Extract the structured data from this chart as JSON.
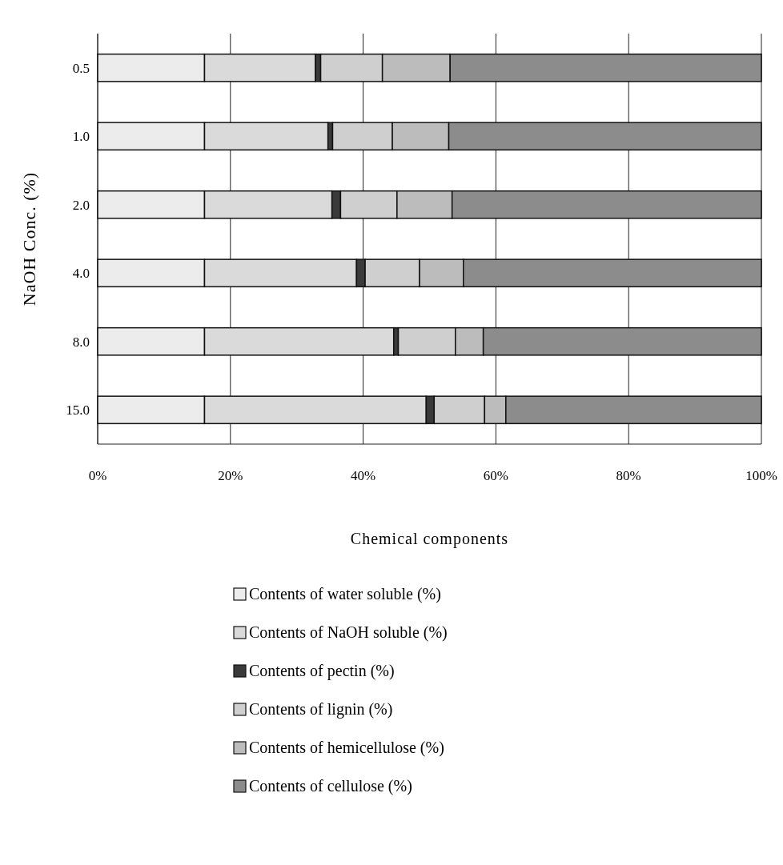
{
  "chart_data": {
    "type": "bar",
    "orientation": "horizontal",
    "stacked": true,
    "xlabel": "Chemical components",
    "ylabel": "NaOH Conc. (%)",
    "categories": [
      "0.5",
      "1.0",
      "2.0",
      "4.0",
      "8.0",
      "15.0"
    ],
    "series": [
      {
        "name": "Contents of water soluble (%)",
        "color": "#ececec",
        "values": [
          16.1,
          16.1,
          16.1,
          16.1,
          16.1,
          16.1
        ]
      },
      {
        "name": "Contents of NaOH soluble (%)",
        "color": "#dadada",
        "values": [
          16.7,
          18.6,
          19.2,
          22.9,
          28.5,
          33.4
        ]
      },
      {
        "name": "Contents of pectin (%)",
        "color": "#3a3a3a",
        "values": [
          0.8,
          0.7,
          1.3,
          1.3,
          0.7,
          1.2
        ]
      },
      {
        "name": "Contents of lignin (%)",
        "color": "#cfcfcf",
        "values": [
          9.3,
          9.0,
          8.5,
          8.2,
          8.6,
          7.6
        ]
      },
      {
        "name": "Contents of hemicellulose (%)",
        "color": "#bcbcbc",
        "values": [
          10.2,
          8.5,
          8.3,
          6.6,
          4.2,
          3.2
        ]
      },
      {
        "name": "Contents of cellulose (%)",
        "color": "#8c8c8c",
        "values": [
          46.9,
          47.1,
          46.6,
          44.9,
          41.9,
          38.5
        ]
      }
    ],
    "xlim": [
      0,
      100
    ],
    "xticks": [
      {
        "value": 0,
        "label": "0%"
      },
      {
        "value": 20,
        "label": "20%"
      },
      {
        "value": 40,
        "label": "40%"
      },
      {
        "value": 60,
        "label": "60%"
      },
      {
        "value": 80,
        "label": "80%"
      },
      {
        "value": 100,
        "label": "100%"
      }
    ],
    "grid": "x",
    "legend": "bottom"
  }
}
